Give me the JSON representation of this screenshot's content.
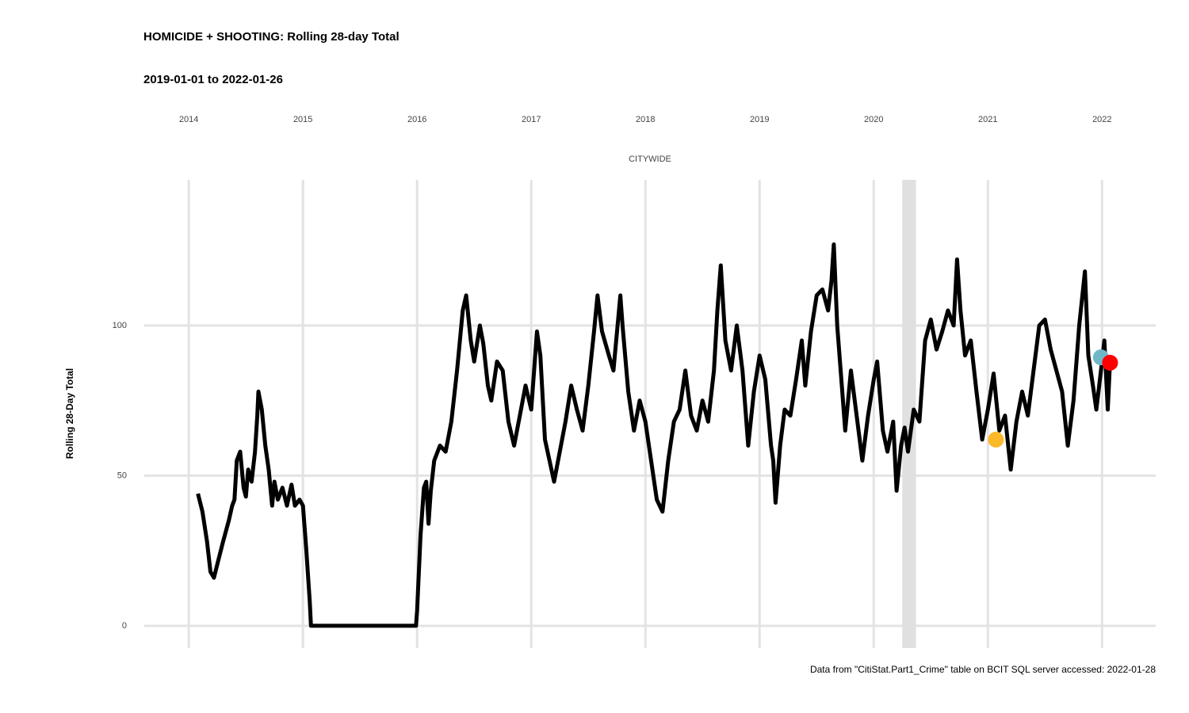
{
  "chart_data": {
    "type": "line",
    "title": "HOMICIDE + SHOOTING: Rolling 28-day Total",
    "subtitle": "2019-01-01 to 2022-01-26",
    "panel_label": "CITYWIDE",
    "y_label": "Rolling 28-Day Total",
    "caption": "Data from \"CitiStat.Part1_Crime\" table on BCIT SQL server accessed: 2022-01-28",
    "xlim": [
      2013.61,
      2022.47
    ],
    "xticks": [
      2014,
      2015,
      2016,
      2017,
      2018,
      2019,
      2020,
      2021,
      2022
    ],
    "ylim": [
      -7.4,
      148.5
    ],
    "yticks": [
      0,
      50,
      100
    ],
    "grid": true,
    "color": "#000000",
    "shaded_range": [
      2020.25,
      2020.37
    ],
    "x": [
      2014.08,
      2014.12,
      2014.16,
      2014.19,
      2014.22,
      2014.26,
      2014.3,
      2014.35,
      2014.38,
      2014.4,
      2014.42,
      2014.45,
      2014.48,
      2014.5,
      2014.52,
      2014.55,
      2014.58,
      2014.6,
      2014.61,
      2014.64,
      2014.67,
      2014.7,
      2014.73,
      2014.75,
      2014.78,
      2014.82,
      2014.86,
      2014.9,
      2014.93,
      2014.97,
      2015.0,
      2015.03,
      2015.06,
      2015.07,
      2015.99,
      2016.0,
      2016.03,
      2016.06,
      2016.08,
      2016.1,
      2016.12,
      2016.15,
      2016.2,
      2016.25,
      2016.3,
      2016.35,
      2016.4,
      2016.43,
      2016.47,
      2016.5,
      2016.55,
      2016.58,
      2016.62,
      2016.65,
      2016.7,
      2016.75,
      2016.8,
      2016.85,
      2016.9,
      2016.95,
      2017.0,
      2017.05,
      2017.08,
      2017.12,
      2017.2,
      2017.25,
      2017.3,
      2017.35,
      2017.4,
      2017.45,
      2017.5,
      2017.55,
      2017.58,
      2017.62,
      2017.68,
      2017.72,
      2017.78,
      2017.8,
      2017.85,
      2017.9,
      2017.95,
      2018.0,
      2018.05,
      2018.1,
      2018.15,
      2018.2,
      2018.25,
      2018.3,
      2018.35,
      2018.4,
      2018.45,
      2018.5,
      2018.55,
      2018.6,
      2018.63,
      2018.66,
      2018.7,
      2018.75,
      2018.8,
      2018.85,
      2018.9,
      2018.95,
      2019.0,
      2019.05,
      2019.1,
      2019.12,
      2019.14,
      2019.18,
      2019.22,
      2019.27,
      2019.32,
      2019.37,
      2019.4,
      2019.45,
      2019.5,
      2019.55,
      2019.6,
      2019.63,
      2019.65,
      2019.68,
      2019.72,
      2019.75,
      2019.8,
      2019.85,
      2019.9,
      2019.95,
      2020.0,
      2020.03,
      2020.08,
      2020.12,
      2020.17,
      2020.2,
      2020.24,
      2020.27,
      2020.3,
      2020.35,
      2020.4,
      2020.45,
      2020.5,
      2020.55,
      2020.6,
      2020.65,
      2020.7,
      2020.73,
      2020.76,
      2020.8,
      2020.85,
      2020.9,
      2020.95,
      2021.0,
      2021.05,
      2021.1,
      2021.15,
      2021.2,
      2021.25,
      2021.3,
      2021.35,
      2021.4,
      2021.45,
      2021.5,
      2021.55,
      2021.6,
      2021.65,
      2021.7,
      2021.75,
      2021.8,
      2021.85,
      2021.88,
      2021.92,
      2021.95,
      2022.0,
      2022.02,
      2022.05,
      2022.07
    ],
    "values": [
      44,
      38,
      28,
      18,
      16,
      22,
      28,
      35,
      40,
      42,
      55,
      58,
      46,
      43,
      52,
      48,
      58,
      70,
      78,
      72,
      60,
      52,
      40,
      48,
      42,
      46,
      40,
      47,
      40,
      42,
      40,
      25,
      8,
      0,
      0,
      5,
      30,
      46,
      48,
      34,
      45,
      55,
      60,
      58,
      68,
      85,
      105,
      110,
      95,
      88,
      100,
      94,
      80,
      75,
      88,
      85,
      68,
      60,
      70,
      80,
      72,
      98,
      90,
      62,
      48,
      58,
      68,
      80,
      72,
      65,
      80,
      98,
      110,
      98,
      90,
      85,
      110,
      100,
      78,
      65,
      75,
      68,
      55,
      42,
      38,
      55,
      68,
      72,
      85,
      70,
      65,
      75,
      68,
      85,
      105,
      120,
      95,
      85,
      100,
      85,
      60,
      78,
      90,
      82,
      60,
      55,
      41,
      60,
      72,
      70,
      82,
      95,
      80,
      98,
      110,
      112,
      105,
      115,
      127,
      100,
      80,
      65,
      85,
      70,
      55,
      70,
      82,
      88,
      65,
      58,
      68,
      45,
      60,
      66,
      58,
      72,
      68,
      95,
      102,
      92,
      98,
      105,
      100,
      122,
      105,
      90,
      95,
      78,
      62,
      72,
      84,
      65,
      70,
      52,
      68,
      78,
      70,
      85,
      100,
      102,
      92,
      85,
      78,
      60,
      75,
      100,
      118,
      90,
      80,
      72,
      88,
      95,
      72,
      88
    ],
    "points": {
      "x": [
        2021.07,
        2021.99,
        2022.07
      ],
      "values": [
        62,
        89.4,
        87.6
      ],
      "colors": [
        "#fbb829",
        "#6fb7c9",
        "#ff0000"
      ]
    }
  }
}
